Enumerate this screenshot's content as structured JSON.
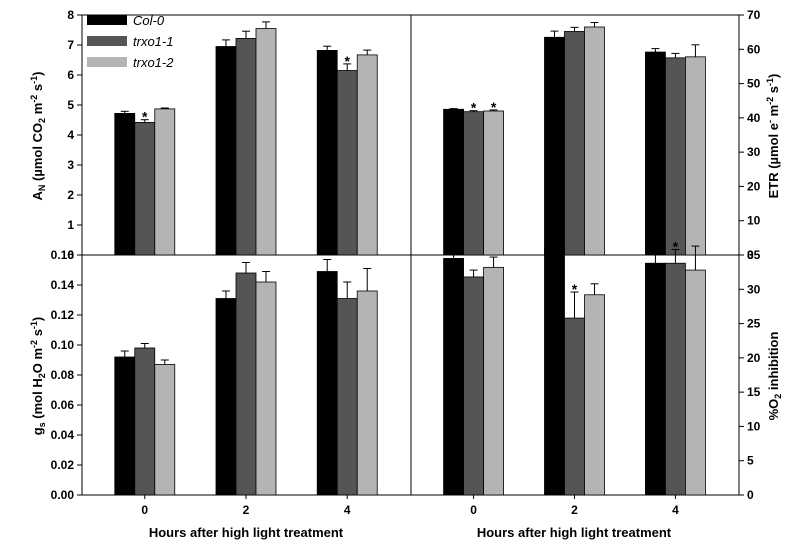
{
  "colors": {
    "col0": "#000000",
    "trxo1_1": "#555555",
    "trxo1_2": "#b4b4b4"
  },
  "legend": [
    "Col-0",
    "trxo1-1",
    "trxo1-2"
  ],
  "chart_data": [
    {
      "type": "bar",
      "panel": "top-left",
      "categories": [
        "0",
        "2",
        "4"
      ],
      "ylabel": "A_N (µmol CO_2 m^-2 s^-1)",
      "ylabel_parts": {
        "main": "A",
        "sub1": "N",
        "unit1": " (µmol CO",
        "sub2": "2",
        "unit2": " m",
        "sup1": "-2",
        "unit3": " s",
        "sup2": "-1",
        "close": ")"
      },
      "xlabel": "",
      "ylim": [
        0,
        8
      ],
      "yticks": [
        "0",
        "1",
        "2",
        "3",
        "4",
        "5",
        "6",
        "7",
        "8"
      ],
      "y_axis": "left",
      "series": [
        {
          "name": "Col-0",
          "values": [
            4.72,
            6.95,
            6.82
          ],
          "errors": [
            0.07,
            0.22,
            0.14
          ]
        },
        {
          "name": "trxo1-1",
          "values": [
            4.42,
            7.22,
            6.15
          ],
          "errors": [
            0.09,
            0.24,
            0.22
          ]
        },
        {
          "name": "trxo1-2",
          "values": [
            4.87,
            7.55,
            6.67
          ],
          "errors": [
            0.03,
            0.22,
            0.16
          ]
        }
      ],
      "significance": [
        [
          1,
          0
        ],
        [
          1,
          2
        ]
      ]
    },
    {
      "type": "bar",
      "panel": "top-right",
      "categories": [
        "0",
        "2",
        "4"
      ],
      "ylabel": "ETR (µmol e^- m^-2 s^-1)",
      "ylabel_parts": {
        "main": "ETR (µmol e",
        "sup0": "-",
        "unit1": " m",
        "sup1": "-2",
        "unit2": " s",
        "sup2": "-1",
        "close": ")"
      },
      "xlabel": "",
      "ylim": [
        0,
        70
      ],
      "yticks": [
        "0",
        "10",
        "20",
        "30",
        "40",
        "50",
        "60",
        "70"
      ],
      "y_axis": "right",
      "series": [
        {
          "name": "Col-0",
          "values": [
            42.5,
            63.5,
            59.2
          ],
          "errors": [
            0.2,
            1.8,
            1.0
          ]
        },
        {
          "name": "trxo1-1",
          "values": [
            41.8,
            65.2,
            57.5
          ],
          "errors": [
            0.3,
            1.2,
            1.3
          ]
        },
        {
          "name": "trxo1-2",
          "values": [
            42.0,
            66.5,
            57.8
          ],
          "errors": [
            0.3,
            1.3,
            3.5
          ]
        }
      ],
      "significance": [
        [
          1,
          0
        ],
        [
          2,
          0
        ]
      ]
    },
    {
      "type": "bar",
      "panel": "bottom-left",
      "categories": [
        "0",
        "2",
        "4"
      ],
      "ylabel": "g_s (mol H_2O m^-2 s^-1)",
      "ylabel_parts": {
        "main": "g",
        "sub1": "s",
        "unit1": " (mol H",
        "sub2": "2",
        "unit2": "O m",
        "sup1": "-2",
        "unit3": " s",
        "sup2": "-1",
        "close": ")"
      },
      "xlabel": "Hours after high light treatment",
      "ylim": [
        0,
        0.16
      ],
      "yticks": [
        "0.00",
        "0.02",
        "0.04",
        "0.06",
        "0.08",
        "0.10",
        "0.12",
        "0.14",
        "0.16"
      ],
      "y_axis": "left",
      "series": [
        {
          "name": "Col-0",
          "values": [
            0.092,
            0.131,
            0.149
          ],
          "errors": [
            0.004,
            0.005,
            0.008
          ]
        },
        {
          "name": "trxo1-1",
          "values": [
            0.098,
            0.148,
            0.131
          ],
          "errors": [
            0.003,
            0.007,
            0.011
          ]
        },
        {
          "name": "trxo1-2",
          "values": [
            0.087,
            0.142,
            0.136
          ],
          "errors": [
            0.003,
            0.007,
            0.015
          ]
        }
      ],
      "significance": []
    },
    {
      "type": "bar",
      "panel": "bottom-right",
      "categories": [
        "0",
        "2",
        "4"
      ],
      "ylabel": "%O_2 inhibition",
      "ylabel_parts": {
        "main": "%O",
        "sub1": "2",
        "unit1": " inhibition"
      },
      "xlabel": "Hours after high light treatment",
      "ylim": [
        0,
        35
      ],
      "yticks": [
        "0",
        "5",
        "10",
        "15",
        "20",
        "25",
        "30",
        "35"
      ],
      "y_axis": "right",
      "series": [
        {
          "name": "Col-0",
          "values": [
            34.5,
            36.0,
            33.8
          ],
          "errors": [
            1.8,
            0.8,
            1.3
          ]
        },
        {
          "name": "trxo1-1",
          "values": [
            31.8,
            25.8,
            33.8
          ],
          "errors": [
            1.0,
            3.8,
            2.0
          ]
        },
        {
          "name": "trxo1-2",
          "values": [
            33.2,
            29.2,
            32.8
          ],
          "errors": [
            1.5,
            1.6,
            3.5
          ]
        }
      ],
      "significance": [
        [
          1,
          1
        ],
        [
          1,
          2
        ]
      ]
    }
  ]
}
